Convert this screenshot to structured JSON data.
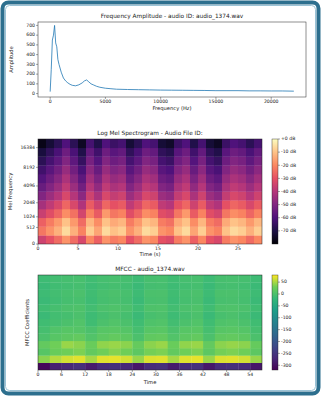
{
  "chart_data": [
    {
      "type": "line",
      "title": "Frequency Amplitude - audio ID: audio_1374.wav",
      "x_label": "Frequency (Hz)",
      "y_label": "Amplitude",
      "color": "#1f77b4",
      "x": [
        0,
        100,
        200,
        300,
        400,
        500,
        600,
        700,
        800,
        1000,
        1200,
        1400,
        1600,
        1800,
        2000,
        2300,
        2600,
        2900,
        3100,
        3300,
        3500,
        3700,
        3900,
        4200,
        4500,
        5000,
        5500,
        6000,
        7000,
        8000,
        9000,
        10000,
        11000,
        12000,
        13000,
        14000,
        15000,
        16000,
        17000,
        18000,
        19000,
        20000,
        21000,
        22050
      ],
      "values": [
        20,
        250,
        550,
        600,
        700,
        520,
        480,
        350,
        300,
        220,
        160,
        130,
        110,
        95,
        85,
        80,
        90,
        110,
        130,
        140,
        120,
        100,
        90,
        75,
        65,
        55,
        50,
        45,
        42,
        40,
        38,
        36,
        35,
        34,
        33,
        32,
        30,
        30,
        30,
        28,
        28,
        27,
        27,
        25
      ],
      "xlim": [
        -1100,
        23150
      ],
      "ylim": [
        -35,
        735
      ],
      "xticks": [
        0,
        5000,
        10000,
        15000,
        20000
      ],
      "yticks": [
        0,
        100,
        200,
        300,
        400,
        500,
        600,
        700
      ]
    },
    {
      "type": "heatmap",
      "title": "Log Mel Spectrogram - Audio File ID:",
      "x_label": "Time (s)",
      "y_label": "Mel Frequency",
      "color": "magma",
      "xlim": [
        0,
        28
      ],
      "ylim": [
        0,
        22050
      ],
      "xticks": [
        0,
        5,
        10,
        15,
        20,
        25
      ],
      "yticks": [
        0,
        512,
        1024,
        2048,
        4096,
        8192,
        16384
      ],
      "cells": [
        [
          -35,
          -30,
          -25,
          -18,
          -25,
          -33,
          -20,
          -27,
          -18,
          -22,
          -20,
          -30,
          -25,
          -18,
          -20,
          -30,
          -32,
          -22,
          -18,
          -27,
          -20,
          -30,
          -33,
          -22,
          -18,
          -20,
          -25,
          -20
        ],
        [
          -23,
          -18,
          -13,
          -6,
          -13,
          -21,
          -8,
          -15,
          -6,
          -10,
          -8,
          -18,
          -13,
          -6,
          -8,
          -18,
          -20,
          -10,
          -6,
          -15,
          -8,
          -18,
          -21,
          -10,
          -6,
          -8,
          -13,
          -8
        ],
        [
          -27,
          -22,
          -17,
          -10,
          -17,
          -25,
          -12,
          -19,
          -10,
          -14,
          -12,
          -22,
          -17,
          -10,
          -12,
          -22,
          -24,
          -14,
          -10,
          -19,
          -12,
          -22,
          -25,
          -14,
          -10,
          -12,
          -17,
          -12
        ],
        [
          -36,
          -31,
          -26,
          -19,
          -24,
          -34,
          -21,
          -28,
          -17,
          -23,
          -21,
          -31,
          -26,
          -19,
          -21,
          -31,
          -33,
          -23,
          -17,
          -28,
          -21,
          -31,
          -34,
          -23,
          -19,
          -21,
          -26,
          -21
        ],
        [
          -43,
          -38,
          -33,
          -26,
          -33,
          -41,
          -28,
          -35,
          -26,
          -30,
          -28,
          -38,
          -33,
          -26,
          -28,
          -38,
          -40,
          -30,
          -26,
          -35,
          -28,
          -38,
          -41,
          -30,
          -26,
          -28,
          -33,
          -28
        ],
        [
          -50,
          -45,
          -40,
          -33,
          -40,
          -48,
          -35,
          -42,
          -33,
          -37,
          -35,
          -45,
          -40,
          -33,
          -35,
          -45,
          -47,
          -37,
          -33,
          -42,
          -35,
          -45,
          -48,
          -37,
          -33,
          -35,
          -40,
          -35
        ],
        [
          -55,
          -50,
          -45,
          -38,
          -45,
          -53,
          -40,
          -47,
          -38,
          -42,
          -40,
          -50,
          -45,
          -38,
          -40,
          -50,
          -52,
          -42,
          -38,
          -47,
          -40,
          -50,
          -53,
          -42,
          -38,
          -40,
          -45,
          -40
        ],
        [
          -59,
          -54,
          -49,
          -42,
          -49,
          -57,
          -44,
          -51,
          -42,
          -46,
          -44,
          -54,
          -49,
          -42,
          -44,
          -54,
          -56,
          -46,
          -42,
          -51,
          -44,
          -54,
          -57,
          -46,
          -42,
          -44,
          -49,
          -44
        ],
        [
          -63,
          -58,
          -53,
          -46,
          -53,
          -61,
          -48,
          -55,
          -46,
          -50,
          -48,
          -58,
          -53,
          -46,
          -48,
          -58,
          -60,
          -50,
          -46,
          -55,
          -48,
          -58,
          -61,
          -50,
          -46,
          -48,
          -53,
          -48
        ],
        [
          -67,
          -62,
          -57,
          -50,
          -57,
          -65,
          -52,
          -59,
          -50,
          -54,
          -52,
          -62,
          -57,
          -50,
          -52,
          -62,
          -64,
          -54,
          -50,
          -59,
          -52,
          -62,
          -65,
          -54,
          -50,
          -52,
          -57,
          -52
        ],
        [
          -71,
          -66,
          -61,
          -54,
          -61,
          -69,
          -56,
          -63,
          -54,
          -58,
          -56,
          -66,
          -61,
          -54,
          -56,
          -66,
          -68,
          -58,
          -54,
          -63,
          -56,
          -66,
          -69,
          -58,
          -54,
          -56,
          -61,
          -56
        ],
        [
          -77,
          -72,
          -67,
          -60,
          -67,
          -75,
          -62,
          -69,
          -60,
          -64,
          -62,
          -72,
          -67,
          -60,
          -62,
          -72,
          -74,
          -64,
          -60,
          -69,
          -62,
          -72,
          -75,
          -64,
          -60,
          -62,
          -67,
          -62
        ]
      ],
      "colorbar": {
        "range": [
          -80,
          0
        ],
        "ticks": [
          {
            "value": 0,
            "label": "+0 dB"
          },
          {
            "value": -10,
            "label": "-10 dB"
          },
          {
            "value": -20,
            "label": "-20 dB"
          },
          {
            "value": -30,
            "label": "-30 dB"
          },
          {
            "value": -40,
            "label": "-40 dB"
          },
          {
            "value": -50,
            "label": "-50 dB"
          },
          {
            "value": -60,
            "label": "-60 dB"
          },
          {
            "value": -70,
            "label": "-70 dB"
          }
        ]
      }
    },
    {
      "type": "heatmap",
      "title": "MFCC - audio_1374.wav",
      "x_label": "Time",
      "y_label": "MFCC Coefficients",
      "color": "viridis",
      "tick_labels": "x",
      "xlim": [
        0,
        57
      ],
      "ylim": [
        0,
        13
      ],
      "xticks": [
        0,
        6,
        12,
        18,
        24,
        30,
        36,
        42,
        48,
        54
      ],
      "cells": [
        [
          -310,
          -280,
          -270,
          -260,
          -285,
          -265,
          -260,
          -270,
          -290,
          -265,
          -260,
          -285,
          -265,
          -260,
          -290,
          -265,
          -260,
          -265,
          -290
        ],
        [
          40,
          55,
          65,
          70,
          50,
          70,
          72,
          65,
          45,
          68,
          70,
          50,
          70,
          72,
          45,
          68,
          70,
          65,
          45
        ],
        [
          10,
          25,
          30,
          35,
          20,
          30,
          38,
          30,
          15,
          32,
          35,
          20,
          30,
          35,
          15,
          32,
          35,
          30,
          15
        ],
        [
          20,
          30,
          45,
          40,
          25,
          42,
          45,
          40,
          22,
          40,
          45,
          25,
          42,
          45,
          20,
          40,
          44,
          40,
          22
        ],
        [
          0,
          10,
          15,
          20,
          5,
          15,
          20,
          15,
          0,
          18,
          20,
          5,
          15,
          20,
          0,
          18,
          20,
          15,
          0
        ],
        [
          -5,
          5,
          10,
          8,
          0,
          10,
          12,
          8,
          -5,
          10,
          12,
          0,
          10,
          12,
          -5,
          10,
          12,
          8,
          -5
        ],
        [
          -10,
          -5,
          0,
          5,
          -10,
          0,
          5,
          0,
          -10,
          3,
          5,
          -8,
          0,
          5,
          -10,
          3,
          5,
          0,
          -10
        ],
        [
          -15,
          -8,
          -5,
          0,
          -12,
          -5,
          0,
          -5,
          -15,
          -3,
          0,
          -12,
          -5,
          0,
          -15,
          -3,
          0,
          -5,
          -15
        ],
        [
          -10,
          -5,
          0,
          2,
          -8,
          0,
          3,
          0,
          -10,
          2,
          3,
          -8,
          0,
          3,
          -10,
          2,
          3,
          0,
          -10
        ],
        [
          -15,
          -10,
          -5,
          -3,
          -12,
          -5,
          -2,
          -5,
          -15,
          -3,
          -2,
          -12,
          -5,
          -2,
          -15,
          -3,
          -2,
          -5,
          -15
        ],
        [
          -12,
          -8,
          -3,
          0,
          -10,
          -3,
          0,
          -3,
          -12,
          -1,
          0,
          -10,
          -3,
          0,
          -12,
          -1,
          0,
          -3,
          -12
        ],
        [
          -15,
          -10,
          -8,
          -5,
          -12,
          -8,
          -5,
          -8,
          -15,
          -6,
          -5,
          -12,
          -8,
          -5,
          -15,
          -6,
          -5,
          -8,
          -15
        ],
        [
          -12,
          -8,
          -5,
          -3,
          -10,
          -5,
          -3,
          -5,
          -12,
          -4,
          -3,
          -10,
          -5,
          -3,
          -12,
          -4,
          -3,
          -5,
          -12
        ]
      ],
      "colorbar": {
        "range": [
          -320,
          80
        ],
        "ticks": [
          50,
          0,
          -50,
          -100,
          -150,
          -200,
          -250,
          -300
        ]
      }
    }
  ]
}
